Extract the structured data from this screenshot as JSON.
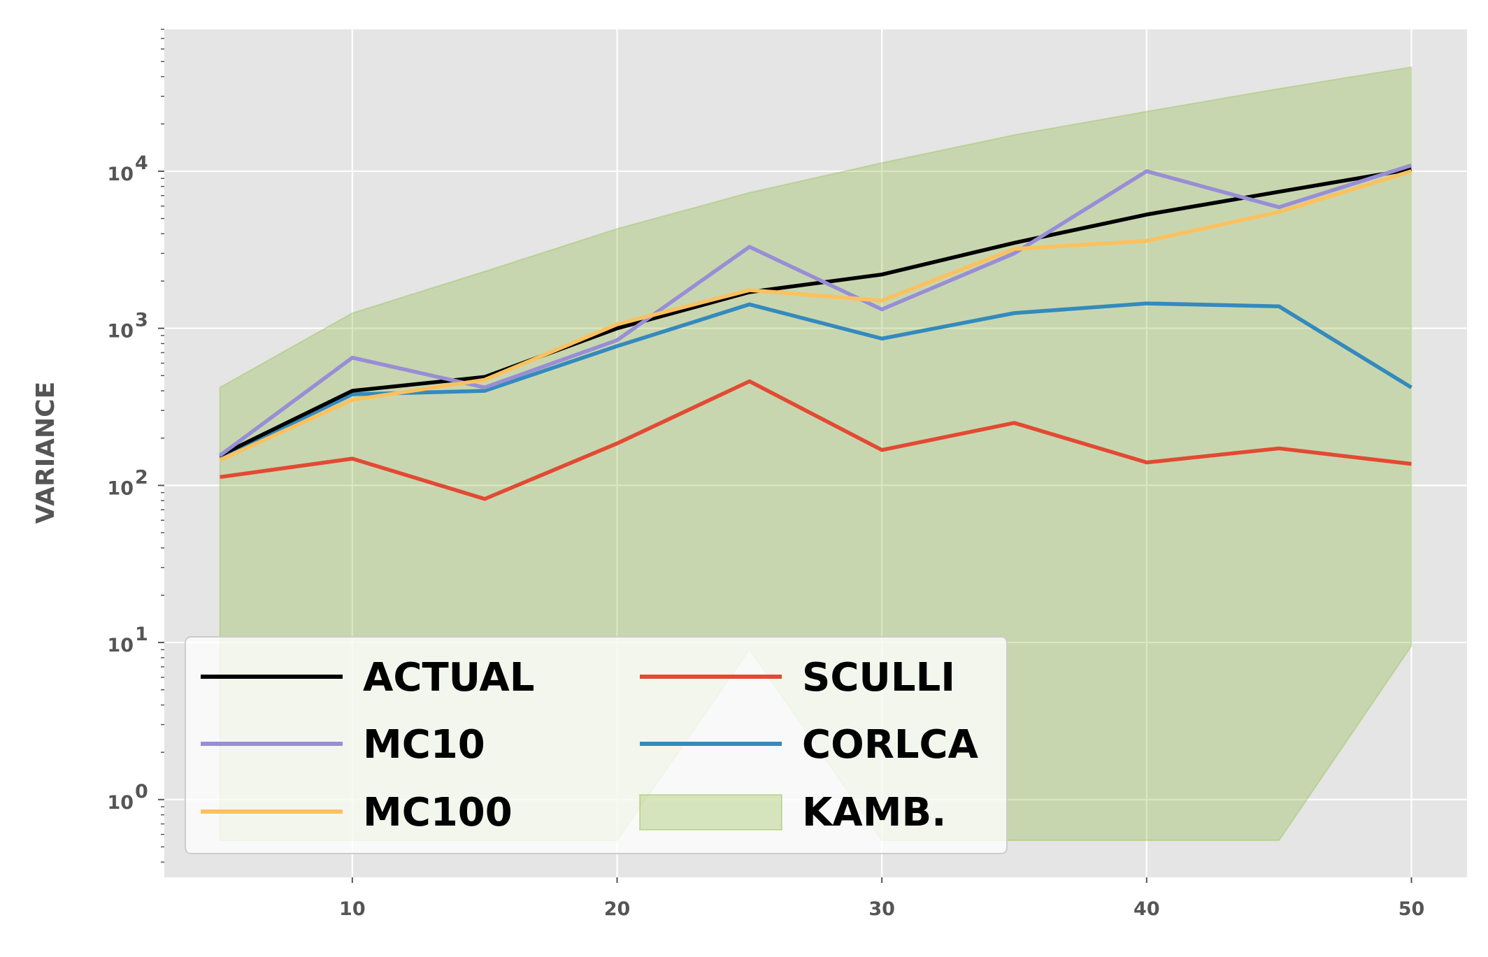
{
  "chart_data": {
    "type": "line",
    "title": "",
    "xlabel": "",
    "ylabel": "VARIANCE",
    "yscale": "log",
    "xlim": [
      2.9,
      52.1
    ],
    "ylim": [
      0.32,
      80000
    ],
    "x_ticks": [
      10,
      20,
      30,
      40,
      50
    ],
    "x_tick_labels": [
      "10",
      "20",
      "30",
      "40",
      "50"
    ],
    "y_ticks": [
      1,
      10,
      100,
      1000,
      10000
    ],
    "y_tick_labels": [
      {
        "base": "10",
        "exp": "0"
      },
      {
        "base": "10",
        "exp": "1"
      },
      {
        "base": "10",
        "exp": "2"
      },
      {
        "base": "10",
        "exp": "3"
      },
      {
        "base": "10",
        "exp": "4"
      }
    ],
    "grid": true,
    "background": "#e5e5e5",
    "legend_position": "lower-left",
    "x": [
      5,
      10,
      15,
      20,
      25,
      30,
      35,
      40,
      45,
      50
    ],
    "series": [
      {
        "name": "ACTUAL",
        "color": "#000000",
        "values": [
          155,
          400,
          490,
          1000,
          1700,
          2200,
          3500,
          5300,
          7400,
          10300
        ]
      },
      {
        "name": "MC10",
        "color": "#988ed5",
        "values": [
          155,
          650,
          420,
          840,
          3300,
          1320,
          3000,
          10000,
          5900,
          10900
        ]
      },
      {
        "name": "MC100",
        "color": "#fbc15e",
        "values": [
          145,
          350,
          470,
          1060,
          1750,
          1500,
          3200,
          3600,
          5500,
          10000
        ]
      },
      {
        "name": "SCULLI",
        "color": "#e24a33",
        "values": [
          113,
          148,
          82,
          185,
          460,
          168,
          250,
          140,
          172,
          137
        ]
      },
      {
        "name": "CORLCA",
        "color": "#348abd",
        "values": [
          150,
          380,
          400,
          770,
          1420,
          860,
          1250,
          1440,
          1380,
          420
        ]
      }
    ],
    "band": {
      "name": "KAMB.",
      "color": "#8eba42",
      "upper": [
        420,
        1250,
        2300,
        4300,
        7300,
        11300,
        17000,
        24000,
        33500,
        46000
      ],
      "lower": [
        0.55,
        0.55,
        0.55,
        0.55,
        9.0,
        0.55,
        0.55,
        0.55,
        0.55,
        9.5
      ]
    },
    "legend": {
      "columns": [
        [
          "ACTUAL",
          "MC10",
          "MC100"
        ],
        [
          "SCULLI",
          "CORLCA",
          "KAMB."
        ]
      ]
    }
  }
}
